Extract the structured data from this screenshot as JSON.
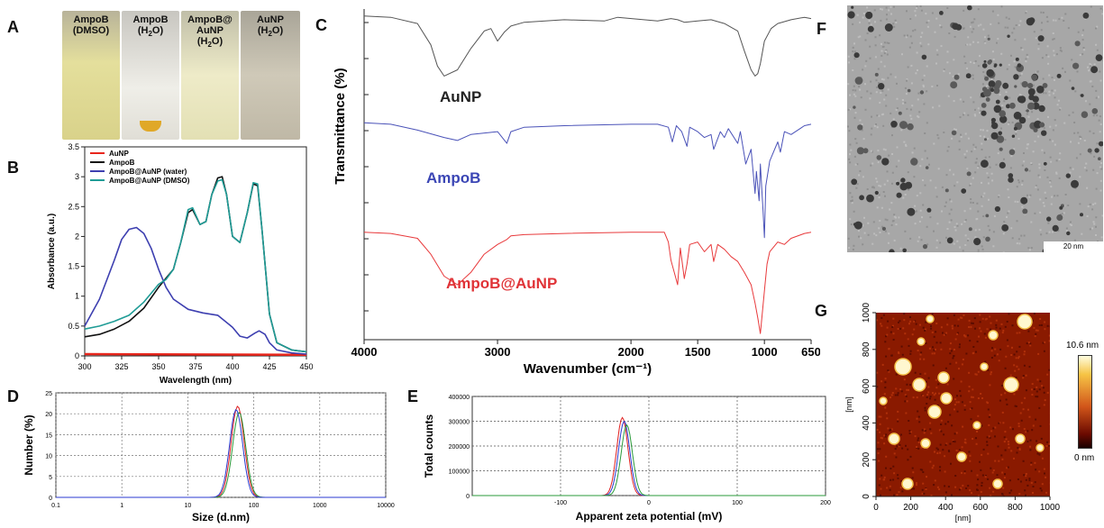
{
  "panels": {
    "A": {
      "letter": "A",
      "vials": [
        {
          "label": "AmpoB\n(DMSO)",
          "color": "#e7e3a6"
        },
        {
          "label": "AmpoB\n(H₂O)",
          "color": "#e6e4dc"
        },
        {
          "label": "AmpoB@\nAuNP\n(H₂O)",
          "color": "#ebe8c9"
        },
        {
          "label": "AuNP\n(H₂O)",
          "color": "#c9c3b5"
        }
      ]
    },
    "B": {
      "letter": "B"
    },
    "C": {
      "letter": "C"
    },
    "D": {
      "letter": "D"
    },
    "E": {
      "letter": "E"
    },
    "F": {
      "letter": "F",
      "scalebar": "20 nm"
    },
    "G": {
      "letter": "G",
      "colorbar_max": "10.6 nm",
      "colorbar_min": "0 nm"
    }
  },
  "chart_data": [
    {
      "id": "B",
      "type": "line",
      "xlabel": "Wavelength (nm)",
      "ylabel": "Absorbance (a.u.)",
      "xlim": [
        300,
        450
      ],
      "ylim": [
        0,
        3.5
      ],
      "xticks": [
        300,
        325,
        350,
        375,
        400,
        425,
        450
      ],
      "yticks": [
        0,
        0.5,
        1,
        1.5,
        2,
        2.5,
        3,
        3.5
      ],
      "legend": "top-left",
      "series": [
        {
          "name": "AuNP",
          "color": "#e8261c",
          "x": [
            300,
            450
          ],
          "y": [
            0.03,
            0.02
          ]
        },
        {
          "name": "AmpoB",
          "color": "#111111",
          "x": [
            300,
            310,
            320,
            330,
            340,
            350,
            355,
            360,
            365,
            370,
            373,
            378,
            382,
            386,
            390,
            393,
            396,
            400,
            405,
            410,
            414,
            417,
            420,
            425,
            430,
            440,
            450
          ],
          "y": [
            0.32,
            0.36,
            0.45,
            0.58,
            0.8,
            1.15,
            1.3,
            1.45,
            1.9,
            2.4,
            2.45,
            2.2,
            2.25,
            2.7,
            2.98,
            3.0,
            2.7,
            2.0,
            1.9,
            2.4,
            2.88,
            2.85,
            2.1,
            0.7,
            0.22,
            0.1,
            0.07
          ]
        },
        {
          "name": "AmpoB@AuNP (water)",
          "color": "#3d3fb0",
          "x": [
            300,
            310,
            320,
            325,
            330,
            335,
            340,
            345,
            350,
            355,
            360,
            370,
            380,
            390,
            400,
            405,
            410,
            415,
            418,
            422,
            425,
            430,
            440,
            450
          ],
          "y": [
            0.5,
            0.95,
            1.6,
            1.95,
            2.12,
            2.15,
            2.05,
            1.8,
            1.45,
            1.15,
            0.95,
            0.78,
            0.72,
            0.68,
            0.48,
            0.33,
            0.3,
            0.38,
            0.42,
            0.36,
            0.22,
            0.1,
            0.05,
            0.03
          ]
        },
        {
          "name": "AmpoB@AuNP (DMSO)",
          "color": "#1f9c96",
          "x": [
            300,
            310,
            320,
            330,
            340,
            350,
            355,
            360,
            365,
            370,
            373,
            378,
            382,
            386,
            390,
            393,
            396,
            400,
            405,
            410,
            414,
            417,
            420,
            425,
            430,
            440,
            450
          ],
          "y": [
            0.45,
            0.5,
            0.58,
            0.68,
            0.9,
            1.2,
            1.28,
            1.45,
            1.9,
            2.45,
            2.48,
            2.2,
            2.25,
            2.7,
            2.93,
            2.95,
            2.7,
            2.0,
            1.9,
            2.4,
            2.9,
            2.88,
            2.1,
            0.7,
            0.22,
            0.1,
            0.07
          ]
        }
      ]
    },
    {
      "id": "C",
      "type": "line",
      "xlabel": "Wavenumber (cm⁻¹)",
      "ylabel": "Transmittance (%)",
      "xlim": [
        4000,
        650
      ],
      "xticks": [
        4000,
        3000,
        2000,
        1500,
        1000,
        650
      ],
      "series": [
        {
          "name": "AuNP",
          "color": "#555555",
          "label_color": "#222222",
          "x": [
            4000,
            3800,
            3600,
            3500,
            3450,
            3400,
            3300,
            3200,
            3100,
            3050,
            3000,
            2950,
            2900,
            2800,
            2500,
            2200,
            2100,
            1800,
            1700,
            1650,
            1600,
            1500,
            1400,
            1300,
            1200,
            1150,
            1100,
            1070,
            1050,
            1030,
            1000,
            950,
            900,
            800,
            700,
            650
          ],
          "y": [
            98,
            97,
            92,
            75,
            58,
            50,
            55,
            72,
            86,
            88,
            78,
            85,
            90,
            93,
            95,
            94,
            97,
            94,
            96,
            95,
            93,
            94,
            95,
            92,
            86,
            70,
            55,
            50,
            52,
            60,
            78,
            88,
            92,
            95,
            97,
            96
          ]
        },
        {
          "name": "AmpoB",
          "color": "#4a52b8",
          "label_color": "#3b46b5",
          "x": [
            4000,
            3800,
            3600,
            3400,
            3300,
            3200,
            3000,
            2930,
            2900,
            2800,
            2500,
            2000,
            1800,
            1720,
            1690,
            1660,
            1620,
            1580,
            1560,
            1500,
            1450,
            1400,
            1380,
            1330,
            1300,
            1270,
            1200,
            1180,
            1140,
            1100,
            1070,
            1060,
            1040,
            1030,
            1010,
            1000,
            990,
            960,
            900,
            880,
            850,
            800,
            700,
            650
          ],
          "y": [
            98,
            97,
            93,
            88,
            86,
            90,
            92,
            84,
            92,
            95,
            96,
            97,
            97,
            95,
            85,
            96,
            92,
            82,
            95,
            92,
            88,
            90,
            80,
            92,
            88,
            94,
            84,
            92,
            70,
            80,
            50,
            65,
            45,
            70,
            38,
            20,
            55,
            72,
            85,
            78,
            92,
            90,
            96,
            97
          ]
        },
        {
          "name": "AmpoB@AuNP",
          "color": "#e8393b",
          "label_color": "#e03337",
          "x": [
            4000,
            3800,
            3600,
            3500,
            3400,
            3300,
            3200,
            3100,
            3000,
            2930,
            2900,
            2800,
            2500,
            2000,
            1750,
            1720,
            1700,
            1650,
            1630,
            1600,
            1580,
            1560,
            1500,
            1450,
            1400,
            1380,
            1350,
            1300,
            1250,
            1200,
            1150,
            1100,
            1070,
            1050,
            1030,
            1000,
            980,
            960,
            900,
            850,
            800,
            700,
            650
          ],
          "y": [
            98,
            97,
            93,
            80,
            62,
            55,
            65,
            80,
            88,
            92,
            95,
            96,
            97,
            98,
            98,
            90,
            75,
            55,
            85,
            60,
            72,
            88,
            90,
            82,
            88,
            74,
            88,
            84,
            78,
            74,
            65,
            55,
            40,
            28,
            15,
            50,
            72,
            82,
            90,
            88,
            93,
            97,
            98
          ]
        }
      ]
    },
    {
      "id": "D",
      "type": "line",
      "xlabel": "Size (d.nm)",
      "ylabel": "Number (%)",
      "xscale": "log",
      "xlim": [
        0.1,
        10000
      ],
      "ylim": [
        0,
        25
      ],
      "xticks": [
        0.1,
        1,
        10,
        100,
        1000,
        10000
      ],
      "xticklabels": [
        "0.1",
        "1",
        "10",
        "100",
        "1000",
        "10000"
      ],
      "yticks": [
        0,
        5,
        10,
        15,
        20,
        25
      ],
      "grid": true,
      "series": [
        {
          "color": "#e02020",
          "peak": 57,
          "height": 21.8
        },
        {
          "color": "#2a9a3a",
          "peak": 60,
          "height": 20.3
        },
        {
          "color": "#2a3ad0",
          "peak": 54,
          "height": 21.0
        }
      ]
    },
    {
      "id": "E",
      "type": "line",
      "xlabel": "Apparent zeta potential (mV)",
      "ylabel": "Total counts",
      "xlim": [
        -200,
        200
      ],
      "ylim": [
        0,
        400000
      ],
      "xticks": [
        -100,
        0,
        100,
        200
      ],
      "yticks": [
        0,
        100000,
        200000,
        300000,
        400000
      ],
      "grid": true,
      "series": [
        {
          "color": "#e02020",
          "peak": -30,
          "height": 315000
        },
        {
          "color": "#2a3ad0",
          "peak": -28,
          "height": 300000
        },
        {
          "color": "#2a9a3a",
          "peak": -25,
          "height": 285000
        }
      ]
    },
    {
      "id": "G",
      "type": "heatmap",
      "xlabel": "[nm]",
      "ylabel": "[nm]",
      "xlim": [
        0,
        1000
      ],
      "ylim": [
        0,
        1000
      ],
      "xticks": [
        0,
        200,
        400,
        600,
        800,
        1000
      ],
      "yticks": [
        0,
        200,
        400,
        600,
        800,
        1000
      ]
    }
  ]
}
